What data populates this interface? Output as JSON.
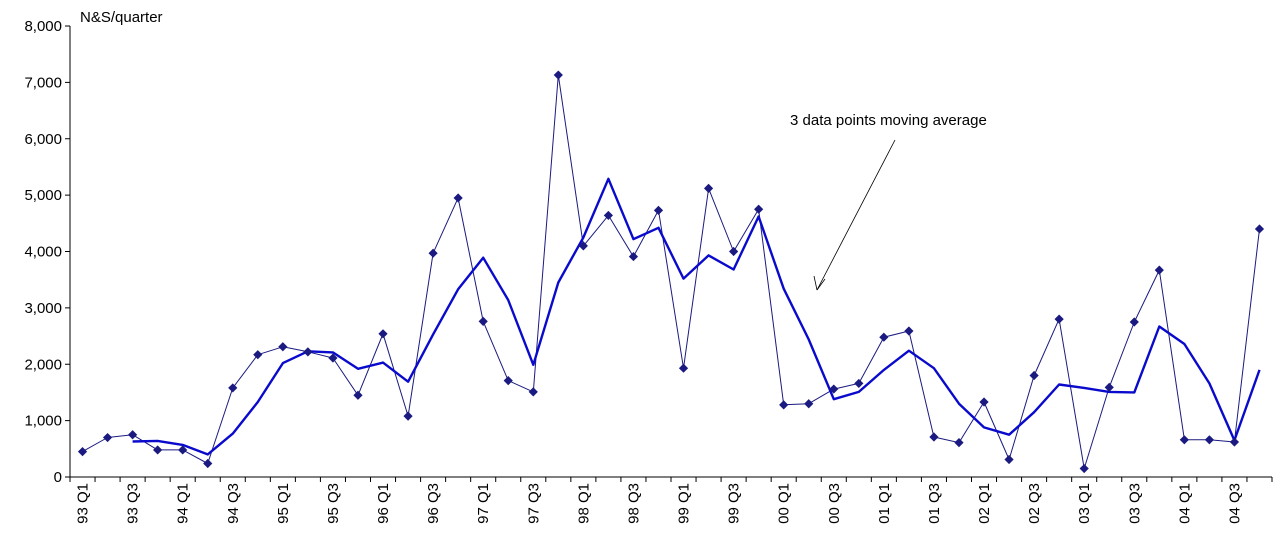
{
  "chart_data": {
    "type": "line",
    "ylabel": "N&S/quarter",
    "ylim": [
      0,
      8000
    ],
    "yticks": [
      "0",
      "1,000",
      "2,000",
      "3,000",
      "4,000",
      "5,000",
      "6,000",
      "7,000",
      "8,000"
    ],
    "xtick_labels": [
      "93 Q1",
      "93 Q3",
      "94 Q1",
      "94 Q3",
      "95 Q1",
      "95 Q3",
      "96 Q1",
      "96 Q3",
      "97 Q1",
      "97 Q3",
      "98 Q1",
      "98 Q3",
      "99 Q1",
      "99 Q3",
      "00 Q1",
      "00 Q3",
      "01 Q1",
      "01 Q3",
      "02 Q1",
      "02 Q3",
      "03 Q1",
      "03 Q3",
      "04 Q1",
      "04 Q3"
    ],
    "categories": [
      "93 Q1",
      "93 Q2",
      "93 Q3",
      "93 Q4",
      "94 Q1",
      "94 Q2",
      "94 Q3",
      "94 Q4",
      "95 Q1",
      "95 Q2",
      "95 Q3",
      "95 Q4",
      "96 Q1",
      "96 Q2",
      "96 Q3",
      "96 Q4",
      "97 Q1",
      "97 Q2",
      "97 Q3",
      "97 Q4",
      "98 Q1",
      "98 Q2",
      "98 Q3",
      "98 Q4",
      "99 Q1",
      "99 Q2",
      "99 Q3",
      "99 Q4",
      "00 Q1",
      "00 Q2",
      "00 Q3",
      "00 Q4",
      "01 Q1",
      "01 Q2",
      "01 Q3",
      "01 Q4",
      "02 Q1",
      "02 Q2",
      "02 Q3",
      "02 Q4",
      "03 Q1",
      "03 Q2",
      "03 Q3",
      "03 Q4",
      "04 Q1",
      "04 Q2",
      "04 Q3",
      "04 Q4"
    ],
    "series": [
      {
        "values": [
          450,
          700,
          750,
          480,
          480,
          240,
          1580,
          2170,
          2310,
          2220,
          2110,
          1450,
          2540,
          1080,
          3970,
          4950,
          2760,
          1710,
          1510,
          7130,
          4100,
          4640,
          3910,
          4730,
          1930,
          5120,
          4000,
          4750,
          1280,
          1300,
          1560,
          1660,
          2480,
          2590,
          710,
          610,
          1330,
          310,
          1800,
          2800,
          150,
          1590,
          2750,
          3670,
          660,
          660,
          620,
          4400
        ],
        "color": "#1a1a80"
      },
      {
        "name": "3 data points moving average",
        "values": [
          null,
          null,
          630,
          640,
          570,
          400,
          770,
          1330,
          2020,
          2230,
          2210,
          1920,
          2030,
          1690,
          2530,
          3330,
          3890,
          3140,
          1990,
          3450,
          4250,
          5290,
          4220,
          4420,
          3520,
          3930,
          3680,
          4620,
          3340,
          2440,
          1380,
          1510,
          1900,
          2240,
          1930,
          1300,
          880,
          750,
          1150,
          1640,
          1580,
          1510,
          1500,
          2670,
          2360,
          1660,
          650,
          1900
        ],
        "color": "#0a0acc"
      }
    ],
    "annotations": [
      {
        "text": "3 data points moving average"
      }
    ],
    "grid": false,
    "legend": "none"
  }
}
